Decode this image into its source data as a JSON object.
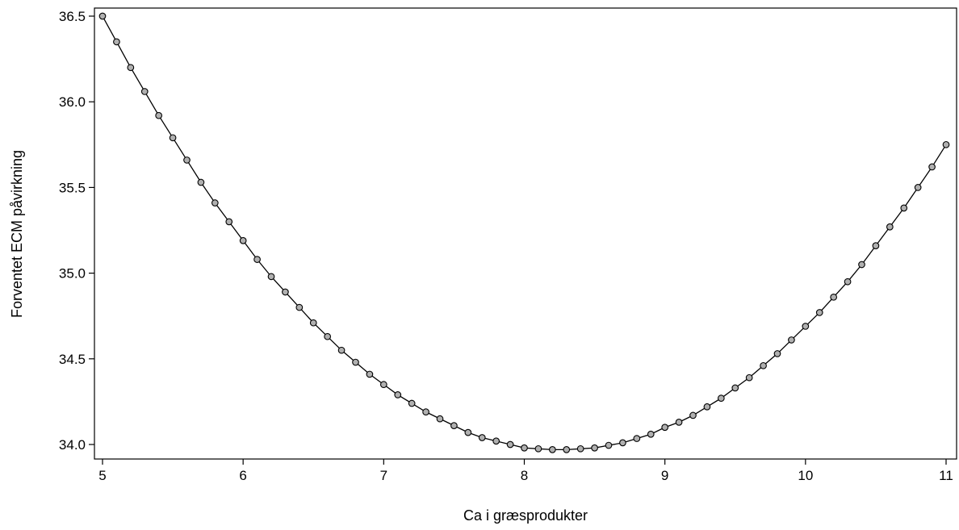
{
  "chart_data": {
    "type": "line",
    "title": "",
    "xlabel": "Ca i græsprodukter",
    "ylabel": "Forventet ECM påvirkning",
    "xlim": [
      5,
      11
    ],
    "ylim": [
      33.95,
      36.52
    ],
    "x_ticks": [
      5,
      6,
      7,
      8,
      9,
      10,
      11
    ],
    "x_tick_labels": [
      "5",
      "6",
      "7",
      "8",
      "9",
      "10",
      "11"
    ],
    "y_ticks": [
      34.0,
      34.5,
      35.0,
      35.5,
      36.0,
      36.5
    ],
    "y_tick_labels": [
      "34.0",
      "34.5",
      "35.0",
      "35.5",
      "36.0",
      "36.5"
    ],
    "grid": false,
    "legend": "none",
    "series": [
      {
        "marker": "open-circle",
        "color": "#000000",
        "marker_fill": "#b0b0b0",
        "x": [
          5.0,
          5.1,
          5.2,
          5.3,
          5.4,
          5.5,
          5.6,
          5.7,
          5.8,
          5.9,
          6.0,
          6.1,
          6.2,
          6.3,
          6.4,
          6.5,
          6.6,
          6.7,
          6.8,
          6.9,
          7.0,
          7.1,
          7.2,
          7.3,
          7.4,
          7.5,
          7.6,
          7.7,
          7.8,
          7.9,
          8.0,
          8.1,
          8.2,
          8.3,
          8.4,
          8.5,
          8.6,
          8.7,
          8.8,
          8.9,
          9.0,
          9.1,
          9.2,
          9.3,
          9.4,
          9.5,
          9.6,
          9.7,
          9.8,
          9.9,
          10.0,
          10.1,
          10.2,
          10.3,
          10.4,
          10.5,
          10.6,
          10.7,
          10.8,
          10.9,
          11.0
        ],
        "y": [
          36.5,
          36.35,
          36.2,
          36.06,
          35.92,
          35.79,
          35.66,
          35.53,
          35.41,
          35.3,
          35.19,
          35.08,
          34.98,
          34.89,
          34.8,
          34.71,
          34.63,
          34.55,
          34.48,
          34.41,
          34.35,
          34.29,
          34.24,
          34.19,
          34.15,
          34.11,
          34.07,
          34.04,
          34.02,
          34.0,
          33.98,
          33.975,
          33.97,
          33.97,
          33.975,
          33.98,
          33.995,
          34.01,
          34.035,
          34.06,
          34.1,
          34.13,
          34.17,
          34.22,
          34.27,
          34.33,
          34.39,
          34.46,
          34.53,
          34.61,
          34.69,
          34.77,
          34.86,
          34.95,
          35.05,
          35.16,
          35.27,
          35.38,
          35.5,
          35.62,
          35.75
        ]
      }
    ]
  }
}
